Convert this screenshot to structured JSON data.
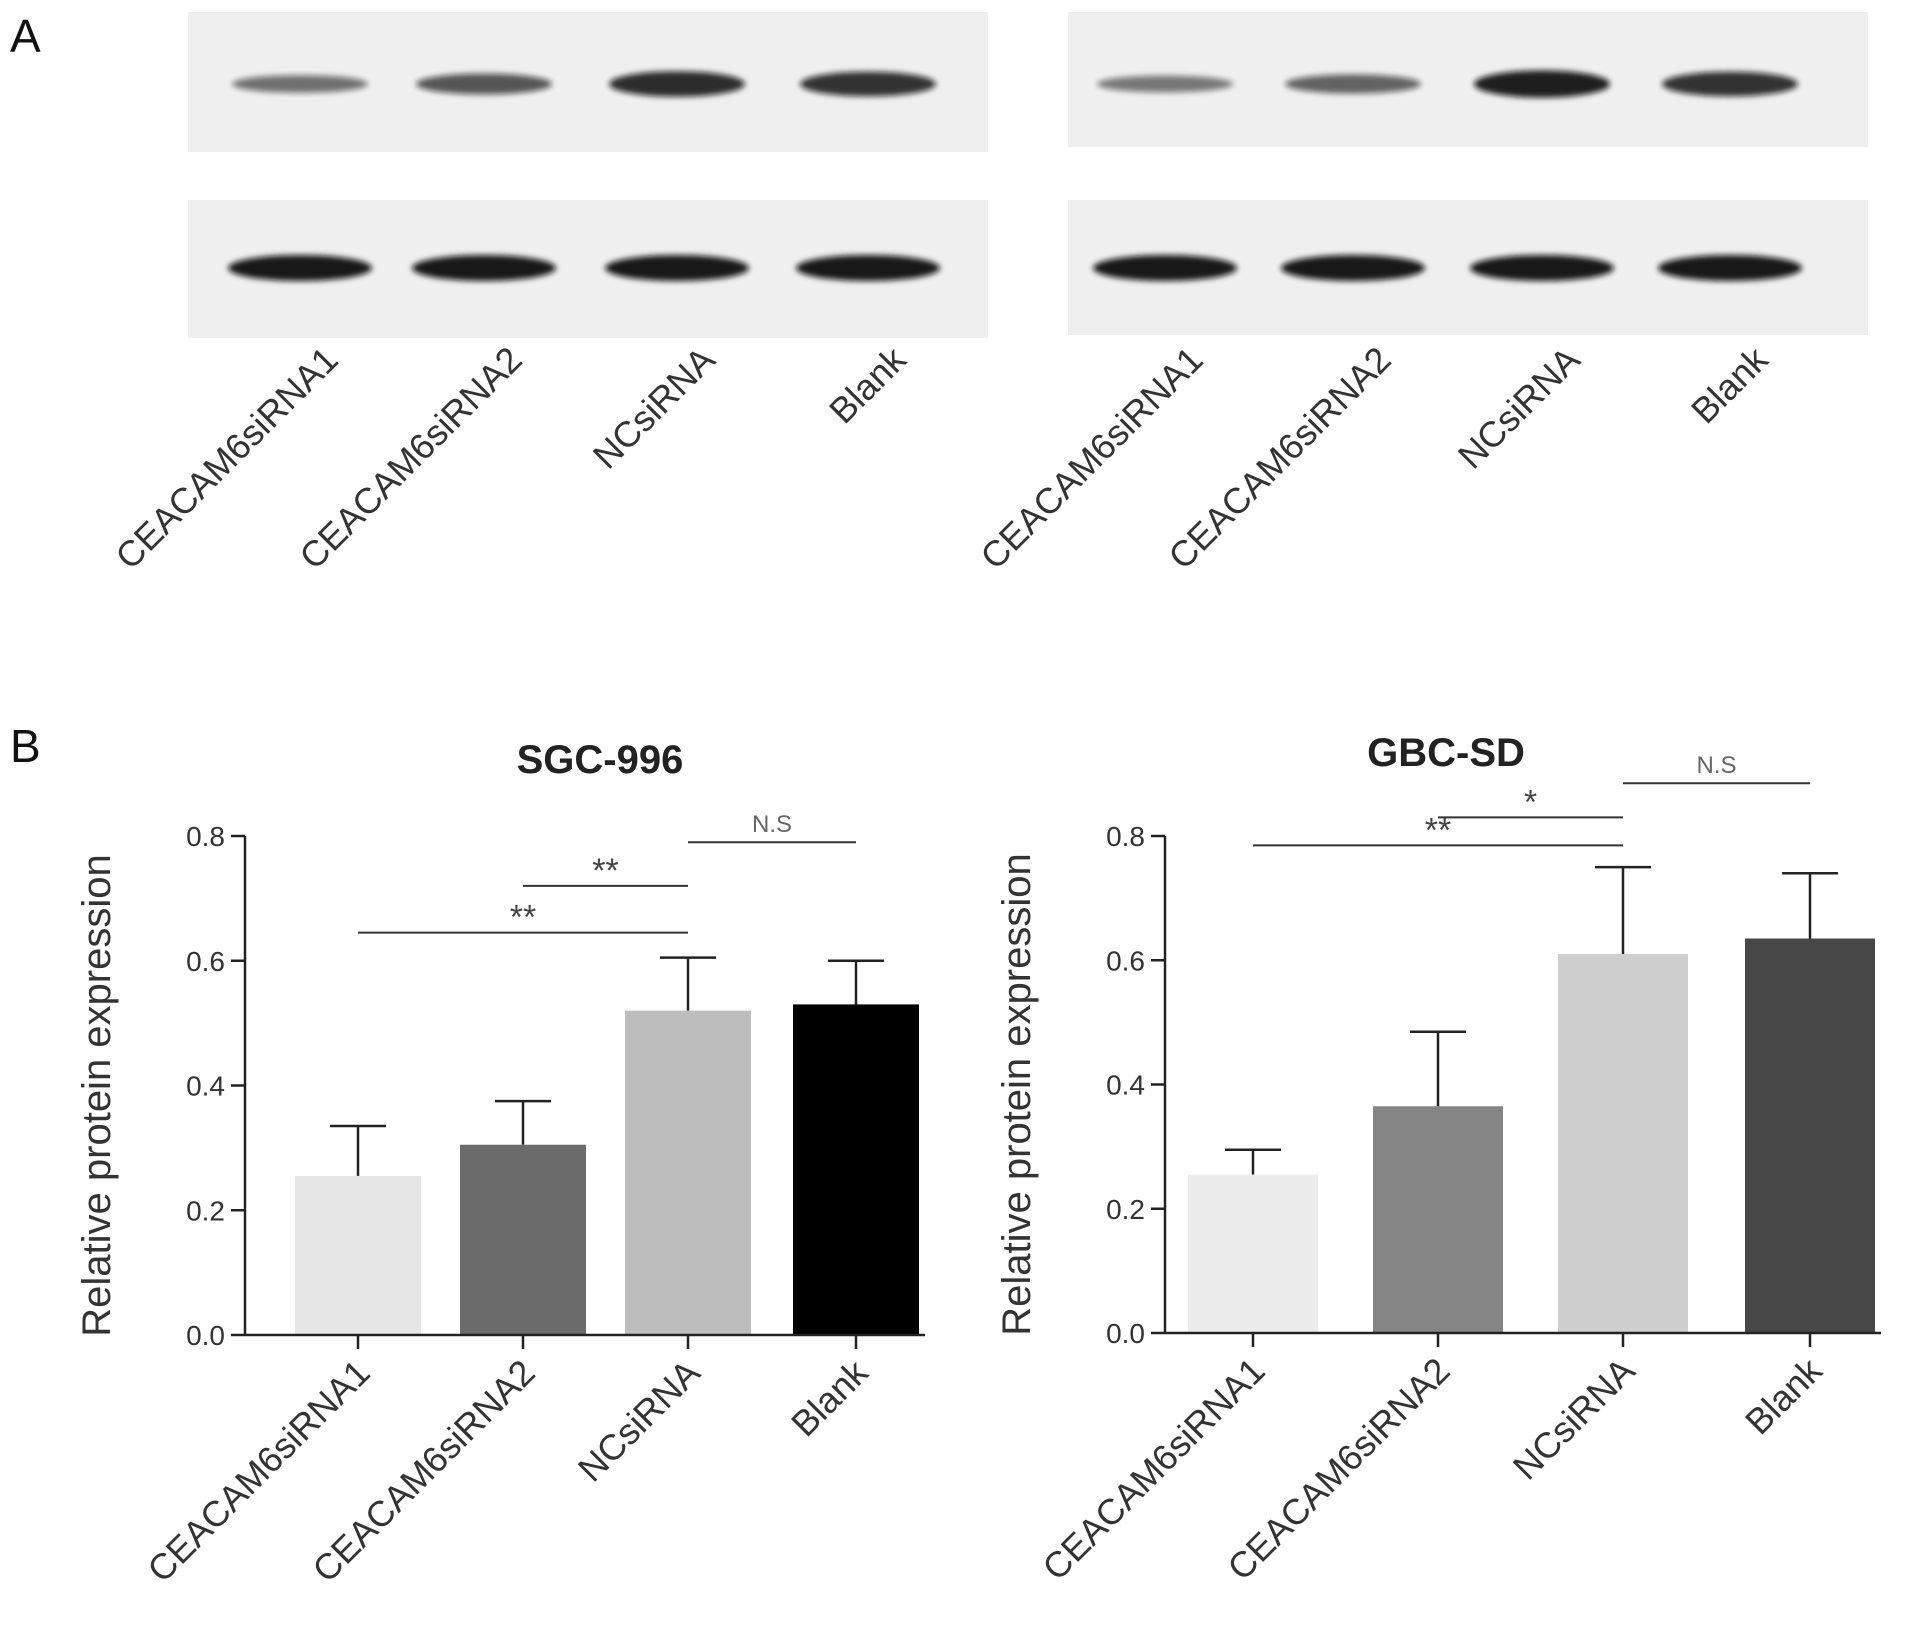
{
  "panel_a": {
    "letter": "A",
    "blots": [
      {
        "lanes": [
          "CEACAM6siRNA1",
          "CEACAM6siRNA2",
          "NCsiRNA",
          "Blank"
        ],
        "target_intensity": [
          0.35,
          0.55,
          0.85,
          0.8
        ],
        "control_intensity": [
          1,
          1,
          1,
          1
        ]
      },
      {
        "lanes": [
          "CEACAM6siRNA1",
          "CEACAM6siRNA2",
          "NCsiRNA",
          "Blank"
        ],
        "target_intensity": [
          0.3,
          0.45,
          0.95,
          0.8
        ],
        "control_intensity": [
          1,
          1,
          1,
          1
        ]
      }
    ]
  },
  "panel_b": {
    "letter": "B"
  },
  "chart_data": [
    {
      "type": "bar",
      "title": "SGC-996",
      "ylabel": "Relative protein expression",
      "categories": [
        "CEACAM6siRNA1",
        "CEACAM6siRNA2",
        "NCsiRNA",
        "Blank"
      ],
      "values": [
        0.255,
        0.305,
        0.52,
        0.53
      ],
      "errors": [
        0.08,
        0.07,
        0.085,
        0.07
      ],
      "bar_colors": [
        "#e6e6e6",
        "#6b6b6b",
        "#bdbdbd",
        "#000000"
      ],
      "ylim": [
        0,
        0.8
      ],
      "yticks": [
        "0.0",
        "0.2",
        "0.4",
        "0.6",
        "0.8"
      ],
      "significance": [
        {
          "from": 0,
          "to": 2,
          "y": 0.645,
          "label": "**"
        },
        {
          "from": 1,
          "to": 2,
          "y": 0.72,
          "label": "**"
        },
        {
          "from": 2,
          "to": 3,
          "y": 0.79,
          "label": "N.S"
        }
      ]
    },
    {
      "type": "bar",
      "title": "GBC-SD",
      "ylabel": "Relative protein expression",
      "categories": [
        "CEACAM6siRNA1",
        "CEACAM6siRNA2",
        "NCsiRNA",
        "Blank"
      ],
      "values": [
        0.255,
        0.365,
        0.61,
        0.635
      ],
      "errors": [
        0.04,
        0.12,
        0.14,
        0.105
      ],
      "bar_colors": [
        "#ececec",
        "#858585",
        "#cfcfcf",
        "#474747"
      ],
      "ylim": [
        0,
        0.8
      ],
      "yticks": [
        "0.0",
        "0.2",
        "0.4",
        "0.6",
        "0.8"
      ],
      "significance": [
        {
          "from": 0,
          "to": 2,
          "y": 0.785,
          "label": "**"
        },
        {
          "from": 1,
          "to": 2,
          "y": 0.83,
          "label": "*"
        },
        {
          "from": 2,
          "to": 3,
          "y": 0.885,
          "label": "N.S"
        }
      ]
    }
  ]
}
